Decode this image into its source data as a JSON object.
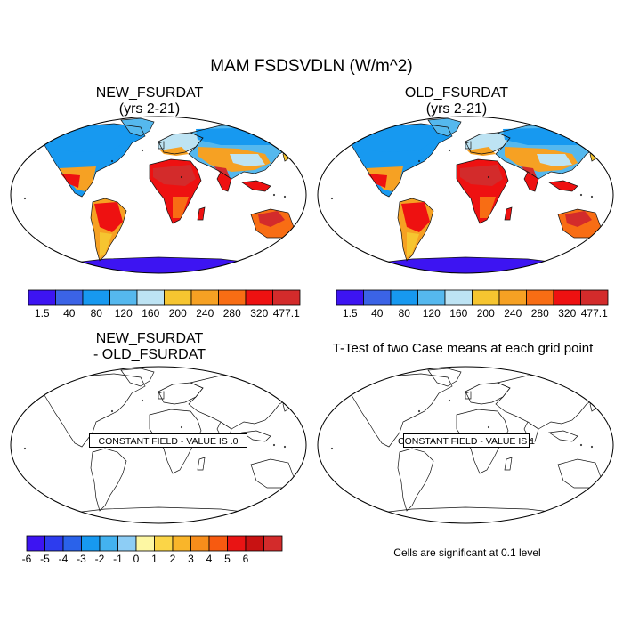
{
  "figure": {
    "title": "MAM FSDSVDLN (W/m^2)"
  },
  "panels": [
    {
      "title_line1": "NEW_FSURDAT",
      "title_line2": "(yrs 2-21)"
    },
    {
      "title_line1": "OLD_FSURDAT",
      "title_line2": "(yrs 2-21)"
    },
    {
      "title_line1": "NEW_FSURDAT",
      "title_line2": "- OLD_FSURDAT",
      "annotation": "CONSTANT FIELD - VALUE IS .0"
    },
    {
      "title_line1": "T-Test of two Case means at each grid point",
      "annotation": "CONSTANT FIELD - VALUE IS 1"
    }
  ],
  "colorbar_case": {
    "labels": [
      "1.5",
      "40",
      "80",
      "120",
      "160",
      "200",
      "240",
      "280",
      "320",
      "477.1"
    ],
    "colors": [
      "#3d14f2",
      "#3b63e6",
      "#1799f0",
      "#55b8ee",
      "#bde3f3",
      "#f6c530",
      "#f6a123",
      "#f86d14",
      "#ee1111",
      "#d32b2b"
    ]
  },
  "colorbar_diff": {
    "labels": [
      "-6",
      "-5",
      "-4",
      "-3",
      "-2",
      "-1",
      "0",
      "1",
      "2",
      "3",
      "4",
      "5",
      "6"
    ],
    "colors": [
      "#3d14f2",
      "#2d3cee",
      "#2a62ea",
      "#1799f0",
      "#43b2f0",
      "#8dcdf5",
      "#fdf7a3",
      "#fbd547",
      "#f9b52a",
      "#f78d1b",
      "#f75a10",
      "#e91414",
      "#c81212",
      "#d32b2b"
    ]
  },
  "significance_note": "Cells are significant at 0.1 level"
}
